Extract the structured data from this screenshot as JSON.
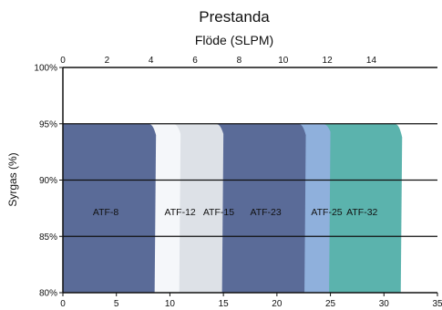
{
  "chart_data": {
    "type": "area",
    "title": "Prestanda",
    "subtitle": "Flöde (SLPM)",
    "ylabel": "Syrgas (%)",
    "xlabel": "",
    "ylim": [
      80,
      100
    ],
    "x_bottom_lim": [
      0,
      35
    ],
    "x_top_lim": [
      0,
      17
    ],
    "y_ticks": [
      "80%",
      "85%",
      "90%",
      "95%",
      "100%"
    ],
    "x_bottom_ticks": [
      "0",
      "5",
      "10",
      "15",
      "20",
      "25",
      "30",
      "35"
    ],
    "x_top_ticks": [
      "0",
      "2",
      "4",
      "6",
      "8",
      "10",
      "12",
      "14"
    ],
    "x_top_tick_values": [
      0,
      2,
      4,
      6,
      8,
      10,
      12,
      14
    ],
    "grid": "horizontal",
    "series": [
      {
        "name": "ATF-32",
        "color": "#5bb3ad",
        "x_end": 31.7,
        "y_end": 93.8,
        "label_x": 26.5
      },
      {
        "name": "ATF-25",
        "color": "#8fb0dc",
        "x_end": 25.0,
        "y_end": 94.3,
        "label_x": 23.2
      },
      {
        "name": "ATF-23",
        "color": "#5a6b98",
        "x_end": 22.7,
        "y_end": 94.0,
        "label_x": 17.5
      },
      {
        "name": "ATF-15",
        "color": "#dde1e7",
        "x_end": 15.0,
        "y_end": 94.1,
        "label_x": 13.1
      },
      {
        "name": "ATF-12",
        "color": "#f5f7fa",
        "x_end": 11.0,
        "y_end": 94.1,
        "label_x": 9.5
      },
      {
        "name": "ATF-8",
        "color": "#5a6b98",
        "x_end": 8.7,
        "y_end": 94.0,
        "label_x": 2.8
      }
    ],
    "top_value": 95.0
  }
}
